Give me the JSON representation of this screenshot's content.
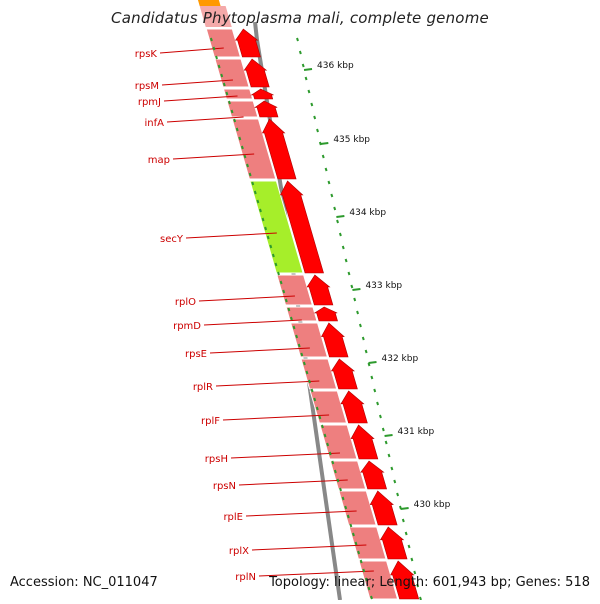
{
  "title": "Candidatus Phytoplasma mali, complete genome",
  "footer": {
    "accession": "Accession: NC_011047",
    "summary": "Topology: linear; Length: 601,943 bp; Genes: 518"
  },
  "colors": {
    "cds": "#ff0000",
    "gene_light": "#ee7f7f",
    "highlight": "#a6ee2a",
    "label": "#cc0000",
    "tick": "#2d9a2d",
    "backbone": "#888888"
  },
  "kbp_ticks": [
    "436 kbp",
    "435 kbp",
    "434 kbp",
    "433 kbp",
    "432 kbp",
    "431 kbp",
    "430 kbp"
  ],
  "genes": [
    {
      "name": "rpsK",
      "highlight": false
    },
    {
      "name": "rpsM",
      "highlight": false
    },
    {
      "name": "rpmJ",
      "highlight": false
    },
    {
      "name": "infA",
      "highlight": false
    },
    {
      "name": "map",
      "highlight": false
    },
    {
      "name": "secY",
      "highlight": true
    },
    {
      "name": "rplO",
      "highlight": false
    },
    {
      "name": "rpmD",
      "highlight": false
    },
    {
      "name": "rpsE",
      "highlight": false
    },
    {
      "name": "rplR",
      "highlight": false
    },
    {
      "name": "rplF",
      "highlight": false
    },
    {
      "name": "rpsH",
      "highlight": false
    },
    {
      "name": "rpsN",
      "highlight": false
    },
    {
      "name": "rplE",
      "highlight": false
    },
    {
      "name": "rplX",
      "highlight": false
    },
    {
      "name": "rplN",
      "highlight": false
    }
  ]
}
